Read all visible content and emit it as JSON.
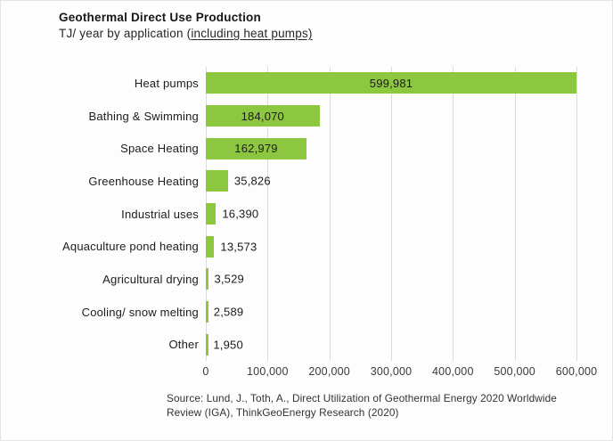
{
  "header": {
    "title": "Geothermal Direct Use Production",
    "subtitle_prefix": "TJ/ year by application (",
    "subtitle_underlined": "including heat pumps)"
  },
  "chart_data": {
    "type": "bar",
    "orientation": "horizontal",
    "title": "Geothermal Direct Use Production",
    "subtitle": "TJ/ year by application (including heat pumps)",
    "unit": "TJ/year",
    "categories": [
      "Heat pumps",
      "Bathing & Swimming",
      "Space Heating",
      "Greenhouse Heating",
      "Industrial uses",
      "Aquaculture pond heating",
      "Agricultural drying",
      "Cooling/ snow melting",
      "Other"
    ],
    "values": [
      599981,
      184070,
      162979,
      35826,
      16390,
      13573,
      3529,
      2589,
      1950
    ],
    "value_labels": [
      "599,981",
      "184,070",
      "162,979",
      "35,826",
      "16,390",
      "13,573",
      "3,529",
      "2,589",
      "1,950"
    ],
    "xlim": [
      0,
      600000
    ],
    "ticks": [
      0,
      100000,
      200000,
      300000,
      400000,
      500000,
      600000
    ],
    "tick_labels": [
      "0",
      "100,000",
      "200,000",
      "300,000",
      "400,000",
      "500,000",
      "600,000"
    ],
    "bar_color": "#8DC63F",
    "gridline_color": "#dcdcdc",
    "grid": true,
    "legend": false
  },
  "footer": {
    "source_line1": "Source: Lund, J., Toth, A., Direct Utilization of Geothermal Energy 2020 Worldwide",
    "source_line2": "Review (IGA), ThinkGeoEnergy Research (2020)"
  }
}
